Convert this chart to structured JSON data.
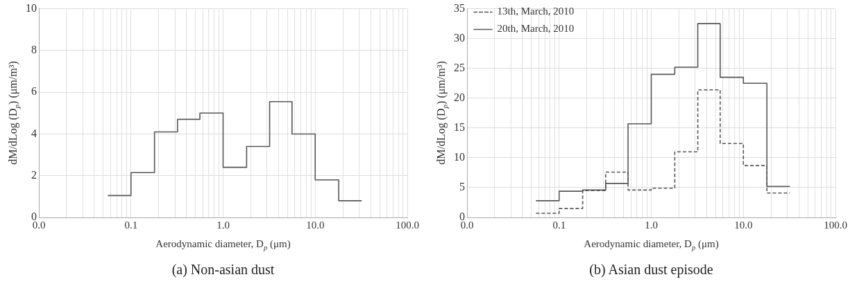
{
  "chart_data": [
    {
      "type": "histogram",
      "title": "(a) Non-asian dust",
      "xlabel": "Aerodynamic diameter, D$_{p}$ (μm)",
      "ylabel": "dM/dLog (D$_{p}$) (μm/m³)",
      "log": "x",
      "grid": true,
      "line_style": "solid",
      "marker": "none",
      "legend": false,
      "bins": [
        0.056,
        0.1,
        0.18,
        0.32,
        0.56,
        1.0,
        1.8,
        3.2,
        5.6,
        10,
        18,
        32
      ],
      "series": [
        {
          "color": "#555555",
          "values": [
            1.05,
            2.15,
            4.1,
            4.7,
            5.0,
            2.4,
            3.4,
            5.55,
            4.0,
            1.8,
            0.8
          ]
        }
      ],
      "xlim": [
        0.01,
        100
      ],
      "xticks": [
        {
          "value": 0.01,
          "label": "0.0"
        },
        {
          "value": 0.02,
          "label": null
        },
        {
          "value": 0.03,
          "label": null
        },
        {
          "value": 0.04,
          "label": null
        },
        {
          "value": 0.05,
          "label": null
        },
        {
          "value": 0.06,
          "label": null
        },
        {
          "value": 0.07,
          "label": null
        },
        {
          "value": 0.08,
          "label": null
        },
        {
          "value": 0.09,
          "label": null
        },
        0.1,
        {
          "value": 0.2,
          "label": null
        },
        {
          "value": 0.3,
          "label": null
        },
        {
          "value": 0.4,
          "label": null
        },
        {
          "value": 0.5,
          "label": null
        },
        {
          "value": 0.6,
          "label": null
        },
        {
          "value": 0.7,
          "label": null
        },
        {
          "value": 0.8,
          "label": null
        },
        {
          "value": 0.9,
          "label": null
        },
        {
          "value": 1,
          "label": "1.0"
        },
        {
          "value": 2,
          "label": null
        },
        {
          "value": 3,
          "label": null
        },
        {
          "value": 4,
          "label": null
        },
        {
          "value": 5,
          "label": null
        },
        {
          "value": 6,
          "label": null
        },
        {
          "value": 7,
          "label": null
        },
        {
          "value": 8,
          "label": null
        },
        {
          "value": 9,
          "label": null
        },
        {
          "value": 10,
          "label": "10.0"
        },
        {
          "value": 20,
          "label": null
        },
        {
          "value": 30,
          "label": null
        },
        {
          "value": 40,
          "label": null
        },
        {
          "value": 50,
          "label": null
        },
        {
          "value": 60,
          "label": null
        },
        {
          "value": 70,
          "label": null
        },
        {
          "value": 80,
          "label": null
        },
        {
          "value": 90,
          "label": null
        },
        {
          "value": 100,
          "label": "100.0"
        }
      ],
      "ylim": [
        0,
        10
      ],
      "yticks": [
        0,
        2,
        4,
        6,
        8,
        10
      ]
    },
    {
      "type": "histogram",
      "title": "(b) Asian dust episode",
      "xlabel": "Aerodynamic diameter, D$_{p}$ (μm)",
      "ylabel": "dM/dLog (D$_{p}$) (μm/m³)",
      "log": "x",
      "grid": true,
      "marker": "none",
      "legend": "top left",
      "bins": [
        0.056,
        0.1,
        0.18,
        0.32,
        0.56,
        1.0,
        1.8,
        3.2,
        5.6,
        10,
        18,
        32
      ],
      "series": [
        {
          "name": "13th, March, 2010",
          "color": "#555555",
          "line_style": "dashed",
          "values": [
            0.7,
            1.5,
            4.5,
            7.6,
            4.6,
            4.9,
            11.0,
            21.4,
            12.4,
            8.7,
            4.1
          ]
        },
        {
          "name": "20th, March, 2010",
          "color": "#555555",
          "line_style": "solid",
          "values": [
            2.8,
            4.4,
            4.6,
            5.7,
            15.7,
            24.0,
            25.2,
            32.5,
            23.5,
            22.5,
            5.2
          ]
        }
      ],
      "xlim": [
        0.01,
        100
      ],
      "xticks": [
        {
          "value": 0.01,
          "label": "0.0"
        },
        {
          "value": 0.02,
          "label": null
        },
        {
          "value": 0.03,
          "label": null
        },
        {
          "value": 0.04,
          "label": null
        },
        {
          "value": 0.05,
          "label": null
        },
        {
          "value": 0.06,
          "label": null
        },
        {
          "value": 0.07,
          "label": null
        },
        {
          "value": 0.08,
          "label": null
        },
        {
          "value": 0.09,
          "label": null
        },
        0.1,
        {
          "value": 0.2,
          "label": null
        },
        {
          "value": 0.3,
          "label": null
        },
        {
          "value": 0.4,
          "label": null
        },
        {
          "value": 0.5,
          "label": null
        },
        {
          "value": 0.6,
          "label": null
        },
        {
          "value": 0.7,
          "label": null
        },
        {
          "value": 0.8,
          "label": null
        },
        {
          "value": 0.9,
          "label": null
        },
        {
          "value": 1,
          "label": "1.0"
        },
        {
          "value": 2,
          "label": null
        },
        {
          "value": 3,
          "label": null
        },
        {
          "value": 4,
          "label": null
        },
        {
          "value": 5,
          "label": null
        },
        {
          "value": 6,
          "label": null
        },
        {
          "value": 7,
          "label": null
        },
        {
          "value": 8,
          "label": null
        },
        {
          "value": 9,
          "label": null
        },
        {
          "value": 10,
          "label": "10.0"
        },
        {
          "value": 20,
          "label": null
        },
        {
          "value": 30,
          "label": null
        },
        {
          "value": 40,
          "label": null
        },
        {
          "value": 50,
          "label": null
        },
        {
          "value": 60,
          "label": null
        },
        {
          "value": 70,
          "label": null
        },
        {
          "value": 80,
          "label": null
        },
        {
          "value": 90,
          "label": null
        },
        {
          "value": 100,
          "label": "100.0"
        }
      ],
      "ylim": [
        0,
        35
      ],
      "yticks": [
        0,
        5,
        10,
        15,
        20,
        25,
        30,
        35
      ]
    }
  ]
}
